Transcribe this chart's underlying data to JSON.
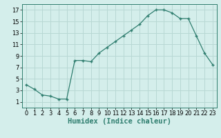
{
  "x": [
    0,
    1,
    2,
    3,
    4,
    5,
    6,
    7,
    8,
    9,
    10,
    11,
    12,
    13,
    14,
    15,
    16,
    17,
    18,
    19,
    20,
    21,
    22,
    23
  ],
  "y": [
    4.0,
    3.2,
    2.2,
    2.0,
    1.5,
    1.5,
    8.2,
    8.2,
    8.0,
    9.5,
    10.5,
    11.5,
    12.5,
    13.5,
    14.5,
    16.0,
    17.0,
    17.0,
    16.5,
    15.5,
    15.5,
    12.5,
    9.5,
    7.5
  ],
  "line_color": "#2e7d6e",
  "marker": "+",
  "bg_color": "#d4eeeb",
  "grid_color": "#b8d8d4",
  "xlabel": "Humidex (Indice chaleur)",
  "xlim": [
    -0.5,
    23.5
  ],
  "ylim": [
    0,
    18
  ],
  "xticks": [
    0,
    1,
    2,
    3,
    4,
    5,
    6,
    7,
    8,
    9,
    10,
    11,
    12,
    13,
    14,
    15,
    16,
    17,
    18,
    19,
    20,
    21,
    22,
    23
  ],
  "yticks": [
    1,
    3,
    5,
    7,
    9,
    11,
    13,
    15,
    17
  ],
  "xlabel_fontsize": 7.5,
  "tick_fontsize": 6.0
}
